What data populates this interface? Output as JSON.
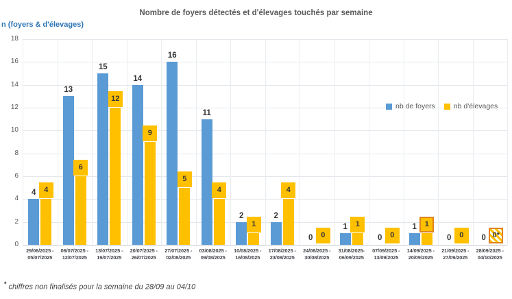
{
  "title": "Nombre de foyers détectés et d'élevages touchés par semaine",
  "y_axis_unit_label": "n (foyers & d'élevages)",
  "legend": {
    "foyers_label": "nb de foyers",
    "elevages_label": "nb  d'élevages"
  },
  "footnote": {
    "marker": "*",
    "text": "chiffres non finalisés pour la semaine du 28/09 au 04/10"
  },
  "colors": {
    "foyers": "#5B9BD5",
    "elevages": "#FFC000",
    "special_border": "#E0821E",
    "title_text": "#595959",
    "axis_text": "#595959",
    "y_unit_label_text": "#2E75B6"
  },
  "chart_data": {
    "type": "bar",
    "title": "Nombre de foyers détectés et d'élevages touchés par semaine",
    "xlabel": "",
    "ylabel": "n (foyers & d'élevages)",
    "ylim": [
      0,
      18
    ],
    "ytick_step": 2,
    "grid": true,
    "legend_position": "right",
    "categories": [
      "29/06/2025 - 05/07/2025",
      "06/07/2025 - 12/07/2025",
      "13/07/2025 - 19/07/2025",
      "20/07/2025 - 26/07/2025",
      "27/07/2025 - 02/08/2025",
      "03/08/2025 - 09/08/2025",
      "10/08/2025 - 16/08/2025",
      "17/08/2025 - 23/08/2025",
      "24/08/2025 - 30/08/2025",
      "31/08/2025 - 06/09/2025",
      "07/09/2025 - 13/09/2025",
      "14/09/2025 - 20/09/2025",
      "21/09/2025 - 27/09/2025",
      "28/09/2025 - 04/10/2025"
    ],
    "category_lines": [
      [
        "29/06/2025 -",
        "05/07/2025"
      ],
      [
        "06/07/2025 -",
        "12/07/2025"
      ],
      [
        "13/07/2025 -",
        "19/07/2025"
      ],
      [
        "20/07/2025 -",
        "26/07/2025"
      ],
      [
        "27/07/2025 -",
        "02/08/2025"
      ],
      [
        "03/08/2025 -",
        "09/08/2025"
      ],
      [
        "10/08/2025 -",
        "16/08/2025"
      ],
      [
        "17/08/2025 -",
        "23/08/2025"
      ],
      [
        "24/08/2025 -",
        "30/08/2025"
      ],
      [
        "31/08/2025-",
        "06/09/2025"
      ],
      [
        "07/09/2025 -",
        "13/09/2025"
      ],
      [
        "14/09/2025 -",
        "20/09/2025"
      ],
      [
        "21/09/2025 -",
        "27/09/2025"
      ],
      [
        "28/09/2025 -",
        "04/10/2025"
      ]
    ],
    "series": [
      {
        "name": "nb de foyers",
        "color": "#5B9BD5",
        "values": [
          4,
          13,
          15,
          14,
          16,
          11,
          2,
          2,
          0,
          1,
          0,
          1,
          0,
          0
        ]
      },
      {
        "name": "nb  d'élevages",
        "color": "#FFC000",
        "values": [
          4,
          6,
          12,
          9,
          5,
          4,
          1,
          4,
          0,
          1,
          0,
          1,
          0,
          0
        ],
        "label_overrides": {
          "13": "0*"
        },
        "label_styles": {
          "11": "bordered",
          "13": "hatched"
        }
      }
    ],
    "annotations": [
      "* chiffres non finalisés pour la semaine du 28/09 au 04/10"
    ]
  }
}
